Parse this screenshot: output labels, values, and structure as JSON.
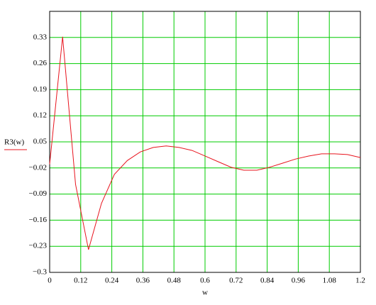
{
  "chart_data": {
    "type": "line",
    "x_label": "w",
    "x": [
      0,
      0.05,
      0.1,
      0.15,
      0.2,
      0.25,
      0.3,
      0.35,
      0.4,
      0.45,
      0.5,
      0.55,
      0.6,
      0.65,
      0.7,
      0.75,
      0.8,
      0.85,
      0.9,
      0.95,
      1.0,
      1.05,
      1.1,
      1.15,
      1.2
    ],
    "series": [
      {
        "name": "R3(w)",
        "color": "#e8141e",
        "values": [
          -0.01,
          0.332,
          -0.064,
          -0.239,
          -0.115,
          -0.037,
          0.0,
          0.023,
          0.035,
          0.039,
          0.035,
          0.027,
          0.012,
          -0.003,
          -0.018,
          -0.026,
          -0.026,
          -0.018,
          -0.007,
          0.004,
          0.012,
          0.018,
          0.018,
          0.016,
          0.008
        ]
      }
    ],
    "xlim": [
      0,
      1.2
    ],
    "xticks": [
      0,
      0.12,
      0.24,
      0.36,
      0.48,
      0.6,
      0.72,
      0.84,
      0.96,
      1.08,
      1.2
    ],
    "ylim": [
      -0.3,
      0.4
    ],
    "yticks": [
      {
        "value": -0.3,
        "label": "−0.3"
      },
      {
        "value": -0.23,
        "label": "−0.23"
      },
      {
        "value": -0.16,
        "label": "−0.16"
      },
      {
        "value": -0.09,
        "label": "−0.09"
      },
      {
        "value": -0.02,
        "label": "−0.02"
      },
      0.05,
      0.12,
      0.19,
      0.26,
      0.33
    ],
    "grid": true,
    "grid_color": "#00cc00"
  }
}
